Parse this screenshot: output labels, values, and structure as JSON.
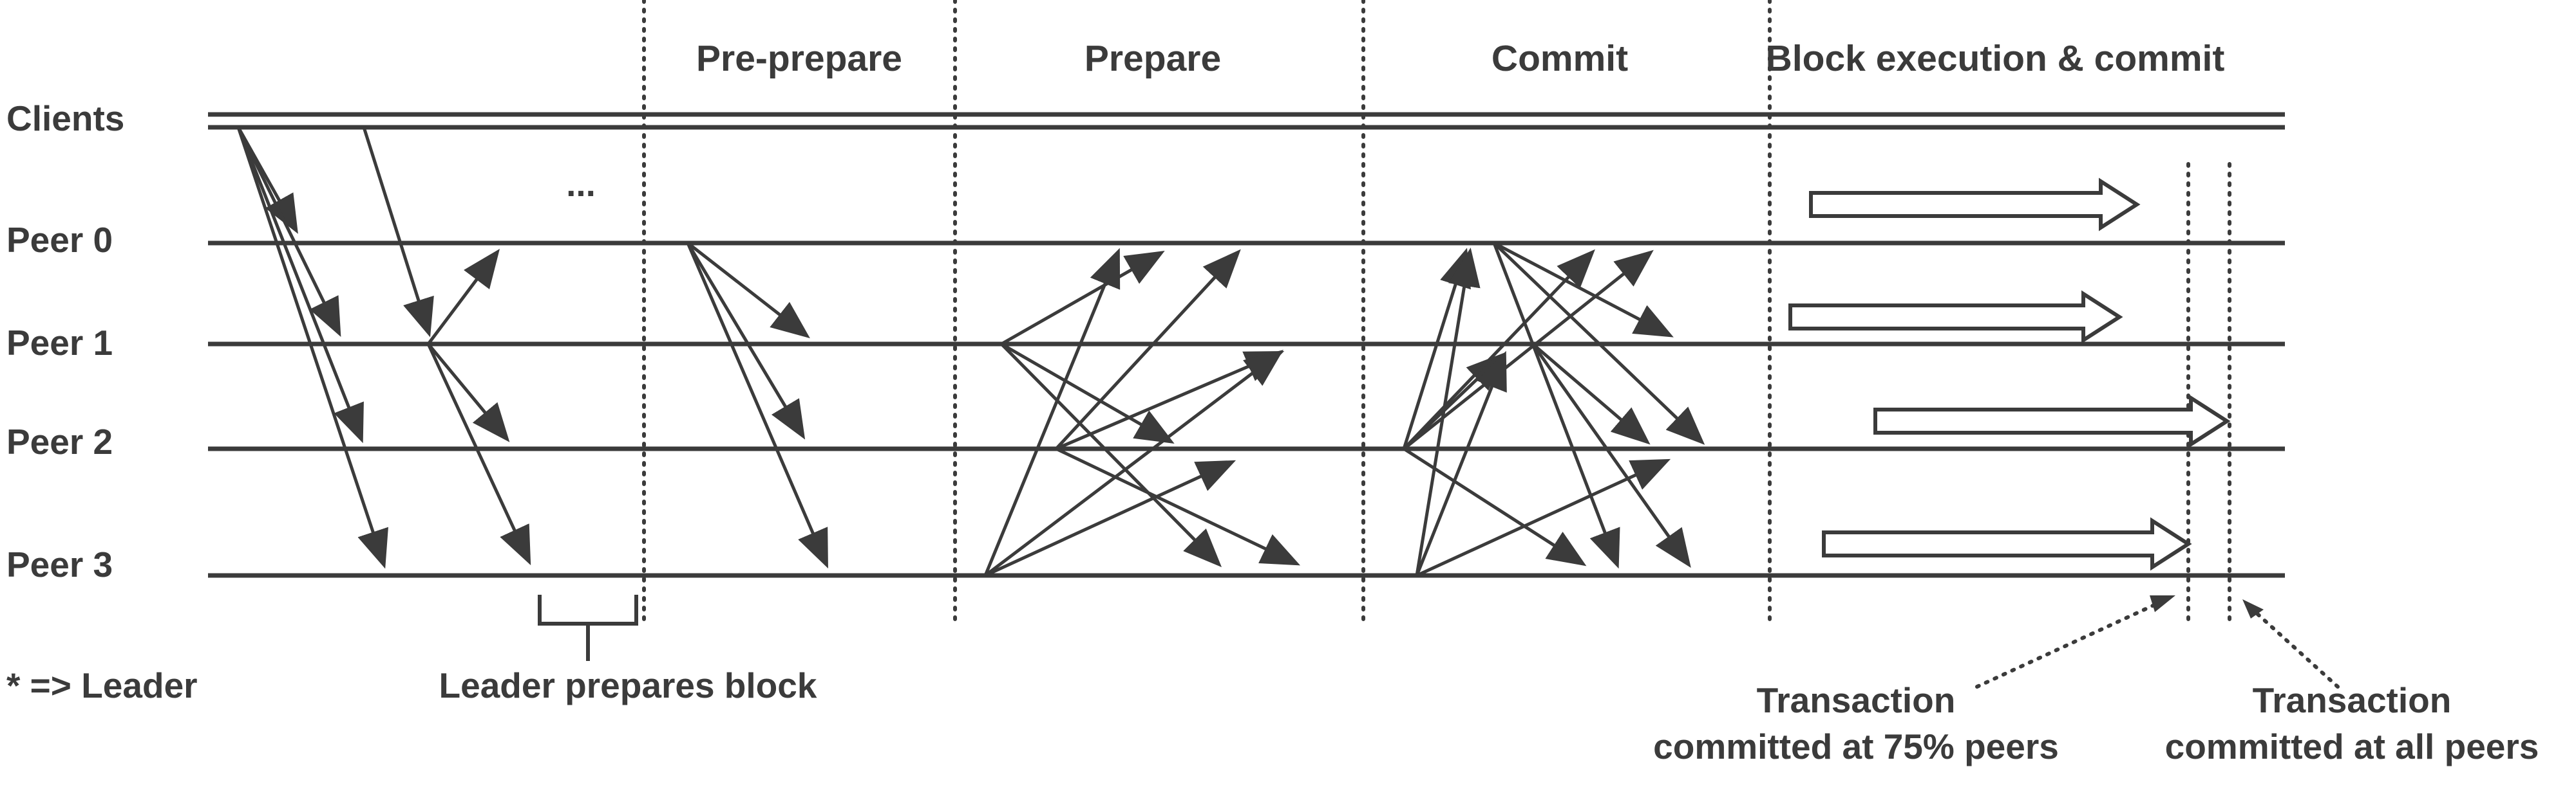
{
  "phases": {
    "pre_prepare": "Pre-prepare",
    "prepare": "Prepare",
    "commit": "Commit",
    "block_exec": "Block execution & commit"
  },
  "rows": {
    "clients": "Clients",
    "peer0": "Peer 0",
    "peer1": "Peer 1",
    "peer2": "Peer 2",
    "peer3": "Peer 3"
  },
  "ellipsis": "...",
  "legend": "* => Leader",
  "leader_prepares": "Leader prepares block",
  "tx75": {
    "line1": "Transaction",
    "line2": "committed at 75% peers"
  },
  "txall": {
    "line1": "Transaction",
    "line2": "committed at all peers"
  },
  "colors": {
    "ink": "#3b3b3b",
    "background": "#ffffff"
  }
}
